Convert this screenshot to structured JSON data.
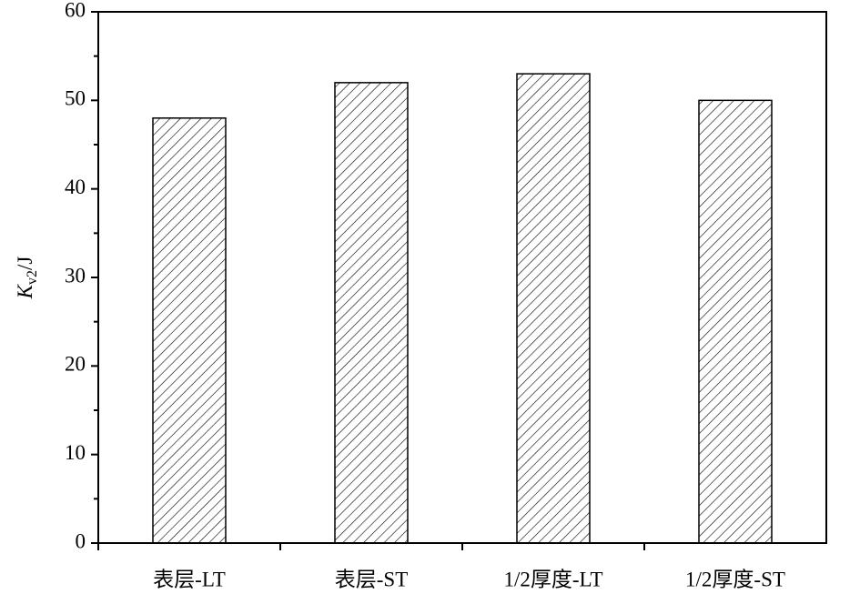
{
  "chart_data": {
    "type": "bar",
    "ylabel": [
      "K",
      "v2",
      "/J"
    ],
    "categories": [
      "表层-LT",
      "表层-ST",
      "1/2厚度-LT",
      "1/2厚度-ST"
    ],
    "values": [
      48,
      52,
      53,
      50
    ],
    "color": "#000000",
    "ylim": [
      0,
      60
    ],
    "yticks": [
      0,
      10,
      20,
      30,
      40,
      50,
      60
    ],
    "minor_yticks": [
      5,
      15,
      25,
      35,
      45,
      55
    ],
    "grid": false
  }
}
